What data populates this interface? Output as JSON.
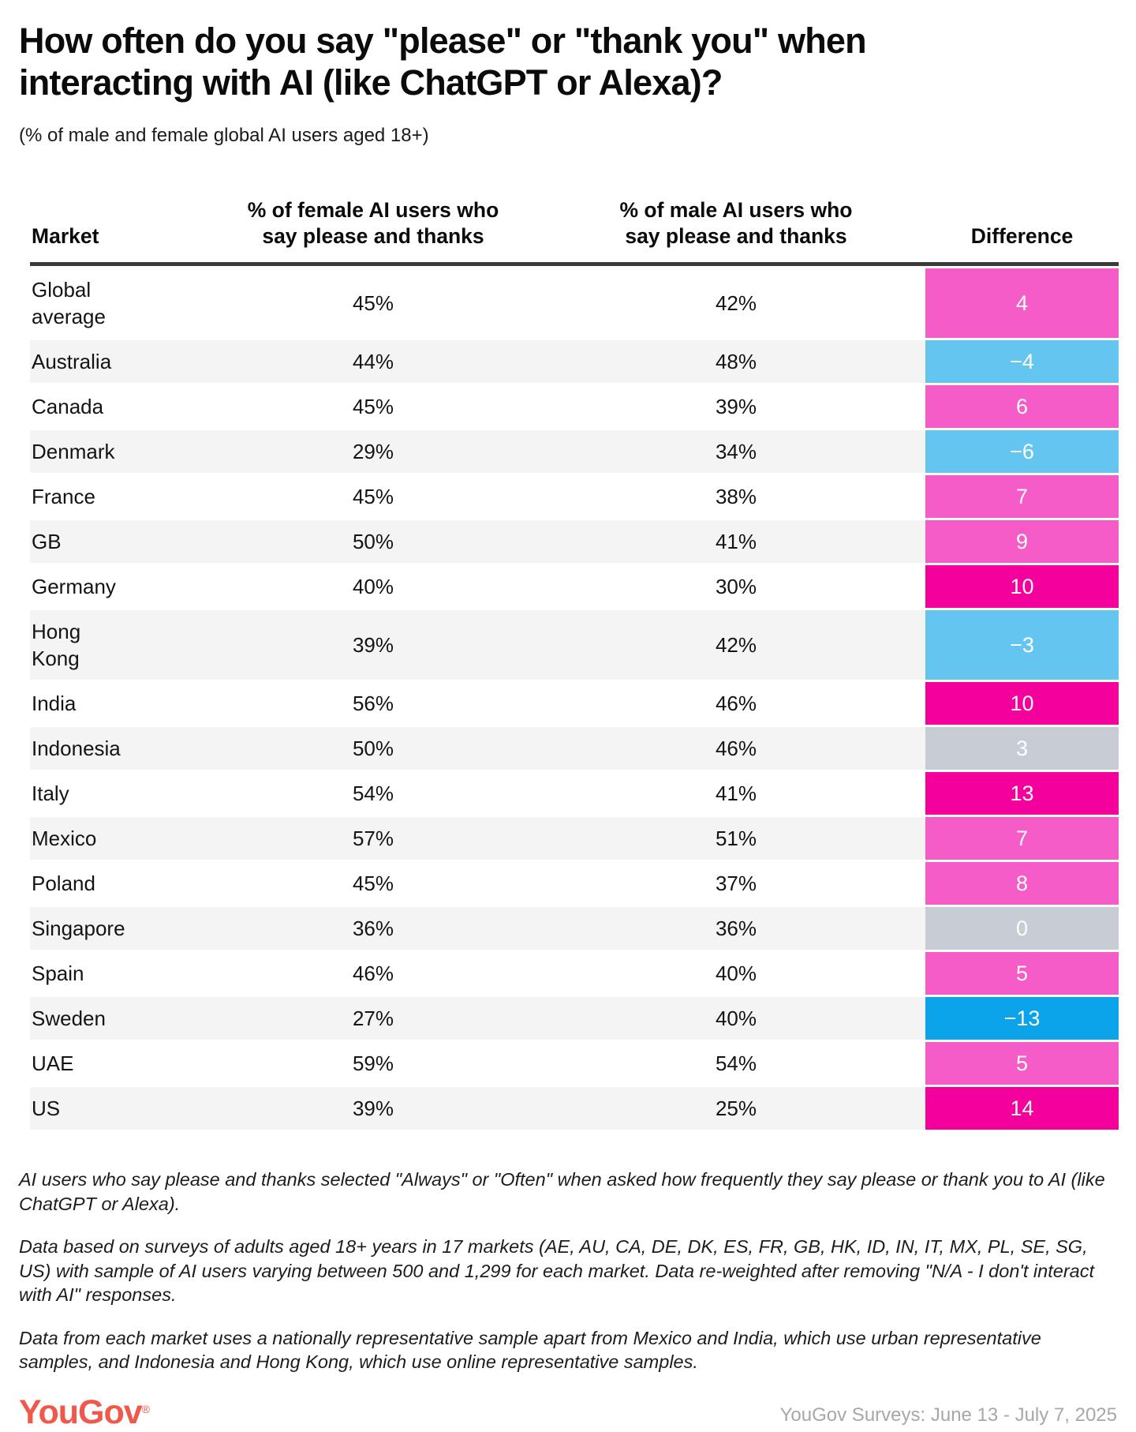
{
  "header": {
    "title": "How often do you say \"please\" or \"thank you\" when interacting with AI (like ChatGPT or Alexa)?",
    "subtitle": "(% of male and female global AI users aged 18+)"
  },
  "table": {
    "columns": [
      "Market",
      "% of female AI users who\nsay please and thanks",
      "% of male AI users who\nsay please and thanks",
      "Difference"
    ],
    "rows": [
      {
        "market": "Global\naverage",
        "female": "45%",
        "male": "42%",
        "difference": "4",
        "diff_color": "pink"
      },
      {
        "market": "Australia",
        "female": "44%",
        "male": "48%",
        "difference": "−4",
        "diff_color": "light_blue"
      },
      {
        "market": "Canada",
        "female": "45%",
        "male": "39%",
        "difference": "6",
        "diff_color": "pink"
      },
      {
        "market": "Denmark",
        "female": "29%",
        "male": "34%",
        "difference": "−6",
        "diff_color": "light_blue"
      },
      {
        "market": "France",
        "female": "45%",
        "male": "38%",
        "difference": "7",
        "diff_color": "pink"
      },
      {
        "market": "GB",
        "female": "50%",
        "male": "41%",
        "difference": "9",
        "diff_color": "pink"
      },
      {
        "market": "Germany",
        "female": "40%",
        "male": "30%",
        "difference": "10",
        "diff_color": "hot_pink"
      },
      {
        "market": "Hong\nKong",
        "female": "39%",
        "male": "42%",
        "difference": "−3",
        "diff_color": "light_blue"
      },
      {
        "market": "India",
        "female": "56%",
        "male": "46%",
        "difference": "10",
        "diff_color": "hot_pink"
      },
      {
        "market": "Indonesia",
        "female": "50%",
        "male": "46%",
        "difference": "3",
        "diff_color": "gray"
      },
      {
        "market": "Italy",
        "female": "54%",
        "male": "41%",
        "difference": "13",
        "diff_color": "hot_pink"
      },
      {
        "market": "Mexico",
        "female": "57%",
        "male": "51%",
        "difference": "7",
        "diff_color": "pink"
      },
      {
        "market": "Poland",
        "female": "45%",
        "male": "37%",
        "difference": "8",
        "diff_color": "pink"
      },
      {
        "market": "Singapore",
        "female": "36%",
        "male": "36%",
        "difference": "0",
        "diff_color": "gray"
      },
      {
        "market": "Spain",
        "female": "46%",
        "male": "40%",
        "difference": "5",
        "diff_color": "pink"
      },
      {
        "market": "Sweden",
        "female": "27%",
        "male": "40%",
        "difference": "−13",
        "diff_color": "strong_blue"
      },
      {
        "market": "UAE",
        "female": "59%",
        "male": "54%",
        "difference": "5",
        "diff_color": "pink"
      },
      {
        "market": "US",
        "female": "39%",
        "male": "25%",
        "difference": "14",
        "diff_color": "hot_pink"
      }
    ]
  },
  "chart_data": {
    "type": "table",
    "title": "How often do you say \"please\" or \"thank you\" when interacting with AI (like ChatGPT or Alexa)?",
    "subtitle": "(% of male and female global AI users aged 18+)",
    "columns": [
      "Market",
      "% of female AI users who say please and thanks",
      "% of male AI users who say please and thanks",
      "Difference"
    ],
    "categories": [
      "Global average",
      "Australia",
      "Canada",
      "Denmark",
      "France",
      "GB",
      "Germany",
      "Hong Kong",
      "India",
      "Indonesia",
      "Italy",
      "Mexico",
      "Poland",
      "Singapore",
      "Spain",
      "Sweden",
      "UAE",
      "US"
    ],
    "series": [
      {
        "name": "% of female AI users who say please and thanks",
        "values": [
          45,
          44,
          45,
          29,
          45,
          50,
          40,
          39,
          56,
          50,
          54,
          57,
          45,
          36,
          46,
          27,
          59,
          39
        ]
      },
      {
        "name": "% of male AI users who say please and thanks",
        "values": [
          42,
          48,
          39,
          34,
          38,
          41,
          30,
          42,
          46,
          46,
          41,
          51,
          37,
          36,
          40,
          40,
          54,
          25
        ]
      },
      {
        "name": "Difference",
        "values": [
          4,
          -4,
          6,
          -6,
          7,
          9,
          10,
          -3,
          10,
          3,
          13,
          7,
          8,
          0,
          5,
          -13,
          5,
          14
        ]
      }
    ],
    "cell_color_coding": {
      "pink": "positive difference 4 to 9",
      "hot_pink": "positive difference 10 or more",
      "gray": "difference near zero (0 to 3)",
      "light_blue": "negative difference −3 to −6",
      "strong_blue": "negative difference −13"
    }
  },
  "colors": {
    "pink": "#f55cc8",
    "hot_pink": "#f3009d",
    "light_blue": "#64c6f0",
    "strong_blue": "#0ba3e9",
    "gray": "#c8ccd4",
    "brand_red": "#ef584b",
    "alt_row": "#f4f4f5",
    "header_rule": "#3a3a3a"
  },
  "footnotes": [
    "AI users who say please and thanks selected \"Always\" or \"Often\" when asked how frequently they say please or thank you to AI (like ChatGPT or Alexa).",
    "Data based on surveys of adults aged 18+ years in 17 markets (AE, AU, CA, DE, DK, ES, FR, GB, HK, ID, IN, IT, MX, PL, SE, SG, US) with sample of AI users varying between 500 and 1,299 for each market. Data re-weighted after removing \"N/A - I don't interact with AI\" responses.",
    "Data from each market uses a nationally representative sample apart from Mexico and India, which use urban representative samples, and Indonesia and Hong Kong, which use online representative samples."
  ],
  "footer": {
    "logo_text": "YouGov",
    "logo_mark": "®",
    "source": "YouGov Surveys: June 13 - July 7, 2025"
  }
}
